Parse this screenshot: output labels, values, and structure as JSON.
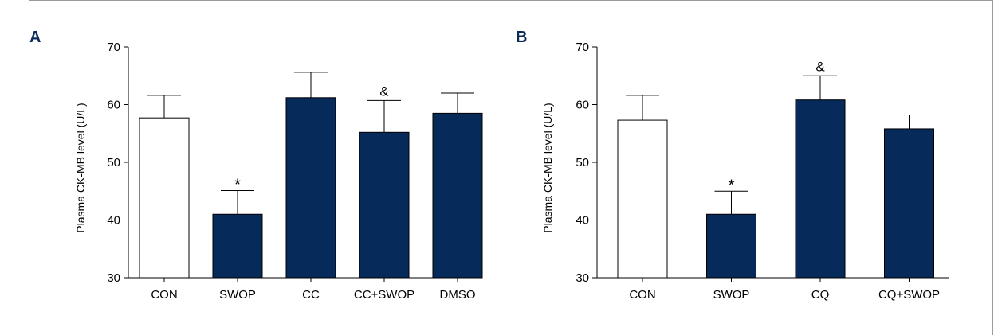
{
  "colors": {
    "filled": "#062a5a",
    "open": "#ffffff",
    "axis": "#000000",
    "letter": "#0b2a55"
  },
  "panels": [
    {
      "letter": "A"
    },
    {
      "letter": "B"
    }
  ],
  "chart_data": [
    {
      "type": "bar",
      "ylabel": "Plasma CK-MB level (U/L)",
      "xlabel": "",
      "ylim": [
        30,
        70
      ],
      "yticks": [
        30,
        40,
        50,
        60,
        70
      ],
      "grid": false,
      "categories": [
        "CON",
        "SWOP",
        "CC",
        "CC+SWOP",
        "DMSO"
      ],
      "series": [
        {
          "values": [
            57.7,
            41.0,
            61.2,
            55.2,
            58.5
          ],
          "error": [
            3.9,
            4.1,
            4.4,
            5.5,
            3.5
          ],
          "fill": [
            "open",
            "filled",
            "filled",
            "filled",
            "filled"
          ],
          "markers": [
            "",
            "*",
            "",
            "&",
            ""
          ]
        }
      ]
    },
    {
      "type": "bar",
      "ylabel": "Plasma CK-MB level (U/L)",
      "xlabel": "",
      "ylim": [
        30,
        70
      ],
      "yticks": [
        30,
        40,
        50,
        60,
        70
      ],
      "grid": false,
      "categories": [
        "CON",
        "SWOP",
        "CQ",
        "CQ+SWOP"
      ],
      "series": [
        {
          "values": [
            57.3,
            41.0,
            60.8,
            55.8
          ],
          "error": [
            4.3,
            4.0,
            4.2,
            2.4
          ],
          "fill": [
            "open",
            "filled",
            "open-filled-none",
            "filled"
          ],
          "markers": [
            "",
            "*",
            "&",
            ""
          ]
        }
      ]
    }
  ]
}
